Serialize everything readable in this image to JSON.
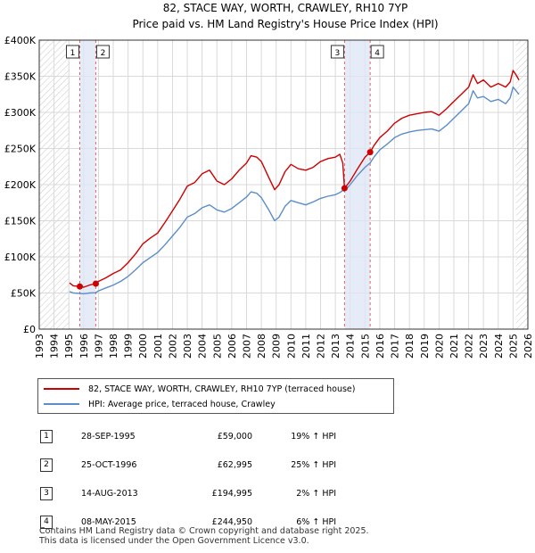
{
  "chart_data": {
    "type": "line",
    "title": "82, STACE WAY, WORTH, CRAWLEY, RH10 7YP",
    "subtitle": "Price paid vs. HM Land Registry's House Price Index (HPI)",
    "xlabel": "",
    "ylabel": "",
    "xlim": [
      1993,
      2026
    ],
    "ylim": [
      0,
      400000
    ],
    "y_ticks": [
      {
        "value": 0,
        "label": "£0"
      },
      {
        "value": 50000,
        "label": "£50K"
      },
      {
        "value": 100000,
        "label": "£100K"
      },
      {
        "value": 150000,
        "label": "£150K"
      },
      {
        "value": 200000,
        "label": "£200K"
      },
      {
        "value": 250000,
        "label": "£250K"
      },
      {
        "value": 300000,
        "label": "£300K"
      },
      {
        "value": 350000,
        "label": "£350K"
      },
      {
        "value": 400000,
        "label": "£400K"
      }
    ],
    "x_ticks": [
      1993,
      1994,
      1995,
      1996,
      1997,
      1998,
      1999,
      2000,
      2001,
      2002,
      2003,
      2004,
      2005,
      2006,
      2007,
      2008,
      2009,
      2010,
      2011,
      2012,
      2013,
      2014,
      2015,
      2016,
      2017,
      2018,
      2019,
      2020,
      2021,
      2022,
      2023,
      2024,
      2025,
      2026
    ],
    "grid": true,
    "legend_position": "below",
    "hatch_ranges": [
      [
        1993,
        1995.05
      ],
      [
        2025.2,
        2026
      ]
    ],
    "shade_ranges": [
      [
        1995.74,
        1996.82
      ],
      [
        2013.62,
        2015.35
      ]
    ],
    "series": [
      {
        "name": "82, STACE WAY, WORTH, CRAWLEY, RH10 7YP (terraced house)",
        "color": "#cc0000",
        "x": [
          1995.05,
          1995.3,
          1995.74,
          1996.0,
          1996.4,
          1996.82,
          1997.0,
          1997.5,
          1998.0,
          1998.5,
          1999.0,
          1999.5,
          2000.0,
          2000.5,
          2001.0,
          2001.5,
          2002.0,
          2002.5,
          2003.0,
          2003.5,
          2004.0,
          2004.5,
          2005.0,
          2005.5,
          2006.0,
          2006.5,
          2007.0,
          2007.3,
          2007.7,
          2008.0,
          2008.5,
          2008.9,
          2009.2,
          2009.6,
          2010.0,
          2010.5,
          2011.0,
          2011.5,
          2012.0,
          2012.5,
          2013.0,
          2013.3,
          2013.5,
          2013.62,
          2014.0,
          2014.5,
          2015.0,
          2015.35,
          2015.6,
          2016.0,
          2016.5,
          2017.0,
          2017.5,
          2018.0,
          2018.5,
          2019.0,
          2019.5,
          2020.0,
          2020.5,
          2021.0,
          2021.5,
          2022.0,
          2022.3,
          2022.6,
          2023.0,
          2023.5,
          2024.0,
          2024.5,
          2024.8,
          2025.0,
          2025.2,
          2025.4
        ],
        "values": [
          64000,
          60000,
          59000,
          58000,
          61000,
          62995,
          66000,
          71000,
          77000,
          82000,
          92000,
          104000,
          118000,
          126000,
          133000,
          148000,
          164000,
          180000,
          198000,
          203000,
          215000,
          220000,
          205000,
          200000,
          208000,
          220000,
          230000,
          240000,
          238000,
          232000,
          210000,
          193000,
          200000,
          218000,
          228000,
          222000,
          220000,
          224000,
          232000,
          236000,
          238000,
          242000,
          230000,
          194995,
          205000,
          222000,
          238000,
          244950,
          254000,
          265000,
          274000,
          285000,
          292000,
          296000,
          298000,
          300000,
          301000,
          296000,
          305000,
          315000,
          325000,
          335000,
          352000,
          340000,
          345000,
          335000,
          340000,
          335000,
          342000,
          358000,
          352000,
          345000
        ]
      },
      {
        "name": "HPI: Average price, terraced house, Crawley",
        "color": "#5b8dc9",
        "x": [
          1995.05,
          1995.3,
          1995.74,
          1996.0,
          1996.4,
          1996.82,
          1997.0,
          1997.5,
          1998.0,
          1998.5,
          1999.0,
          1999.5,
          2000.0,
          2000.5,
          2001.0,
          2001.5,
          2002.0,
          2002.5,
          2003.0,
          2003.5,
          2004.0,
          2004.5,
          2005.0,
          2005.5,
          2006.0,
          2006.5,
          2007.0,
          2007.3,
          2007.7,
          2008.0,
          2008.5,
          2008.9,
          2009.2,
          2009.6,
          2010.0,
          2010.5,
          2011.0,
          2011.5,
          2012.0,
          2012.5,
          2013.0,
          2013.3,
          2013.5,
          2013.62,
          2014.0,
          2014.5,
          2015.0,
          2015.35,
          2015.6,
          2016.0,
          2016.5,
          2017.0,
          2017.5,
          2018.0,
          2018.5,
          2019.0,
          2019.5,
          2020.0,
          2020.5,
          2021.0,
          2021.5,
          2022.0,
          2022.3,
          2022.6,
          2023.0,
          2023.5,
          2024.0,
          2024.5,
          2024.8,
          2025.0,
          2025.2,
          2025.4
        ],
        "values": [
          52000,
          50000,
          49500,
          49000,
          50000,
          50400,
          53000,
          57000,
          61000,
          66000,
          73000,
          82000,
          92000,
          99000,
          106000,
          117000,
          129000,
          141000,
          155000,
          160000,
          168000,
          172000,
          165000,
          162000,
          167000,
          175000,
          183000,
          190000,
          188000,
          182000,
          165000,
          150000,
          155000,
          170000,
          178000,
          175000,
          172000,
          176000,
          181000,
          184000,
          186000,
          189000,
          192000,
          191000,
          200000,
          213000,
          224000,
          230000,
          238000,
          248000,
          256000,
          265000,
          270000,
          273000,
          275000,
          276000,
          277000,
          274000,
          282000,
          292000,
          302000,
          312000,
          330000,
          320000,
          322000,
          315000,
          318000,
          312000,
          320000,
          335000,
          330000,
          325000
        ]
      }
    ],
    "sale_markers": [
      {
        "id": "1",
        "x": 1995.74,
        "value": 59000
      },
      {
        "id": "2",
        "x": 1996.82,
        "value": 62995
      },
      {
        "id": "3",
        "x": 2013.62,
        "value": 194995
      },
      {
        "id": "4",
        "x": 2015.35,
        "value": 244950
      }
    ]
  },
  "legend": {
    "property_label": "82, STACE WAY, WORTH, CRAWLEY, RH10 7YP (terraced house)",
    "hpi_label": "HPI: Average price, terraced house, Crawley",
    "property_color": "#cc0000",
    "hpi_color": "#5b8dc9"
  },
  "sales": [
    {
      "num": "1",
      "date": "28-SEP-1995",
      "price": "£59,000",
      "hpi": "19% ↑ HPI"
    },
    {
      "num": "2",
      "date": "25-OCT-1996",
      "price": "£62,995",
      "hpi": "25% ↑ HPI"
    },
    {
      "num": "3",
      "date": "14-AUG-2013",
      "price": "£194,995",
      "hpi": "2% ↑ HPI"
    },
    {
      "num": "4",
      "date": "08-MAY-2015",
      "price": "£244,950",
      "hpi": "6% ↑ HPI"
    }
  ],
  "footer": {
    "line1": "Contains HM Land Registry data © Crown copyright and database right 2025.",
    "line2": "This data is licensed under the Open Government Licence v3.0."
  }
}
